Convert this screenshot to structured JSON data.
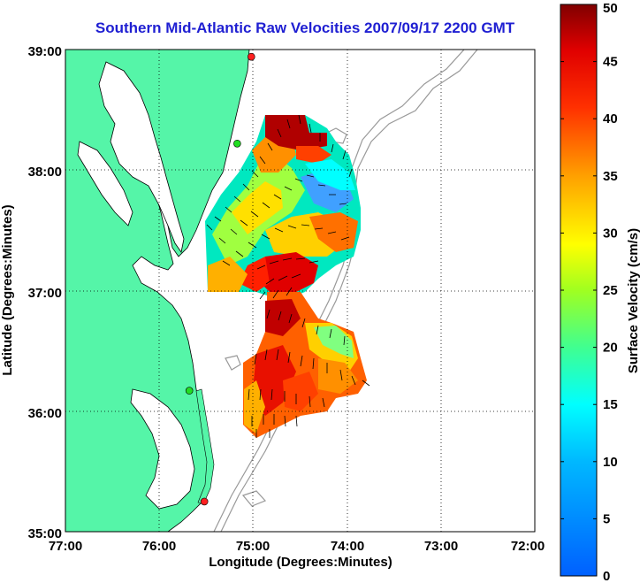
{
  "title": "Southern Mid-Atlantic Raw Velocities 2007/09/17 2200 GMT",
  "x_axis": {
    "label": "Longitude (Degrees:Minutes)",
    "ticks": [
      "77:00",
      "76:00",
      "75:00",
      "74:00",
      "73:00",
      "72:00"
    ]
  },
  "y_axis": {
    "label": "Latitude (Degrees:Minutes)",
    "ticks": [
      "39:00",
      "38:00",
      "37:00",
      "36:00",
      "35:00"
    ]
  },
  "colorbar": {
    "label": "Surface Velocity (cm/s)",
    "ticks": [
      "50",
      "45",
      "40",
      "35",
      "30",
      "25",
      "20",
      "15",
      "10",
      "5",
      "0"
    ],
    "min": 0,
    "max": 50
  },
  "colors": {
    "land": "#55f5a8",
    "title": "#1f1fd2",
    "bathymetry": "#999999",
    "station_green": "#22dd22",
    "station_red": "#ff2020"
  },
  "stations": [
    {
      "color": "red",
      "lon": -75.02,
      "lat": 38.94
    },
    {
      "color": "green",
      "lon": -75.17,
      "lat": 38.22
    },
    {
      "color": "green",
      "lon": -75.68,
      "lat": 36.17
    },
    {
      "color": "red",
      "lon": -75.52,
      "lat": 35.25
    }
  ],
  "map_extent": {
    "lon": [
      -77,
      -72
    ],
    "lat": [
      35,
      39
    ]
  },
  "grid": "dotted"
}
